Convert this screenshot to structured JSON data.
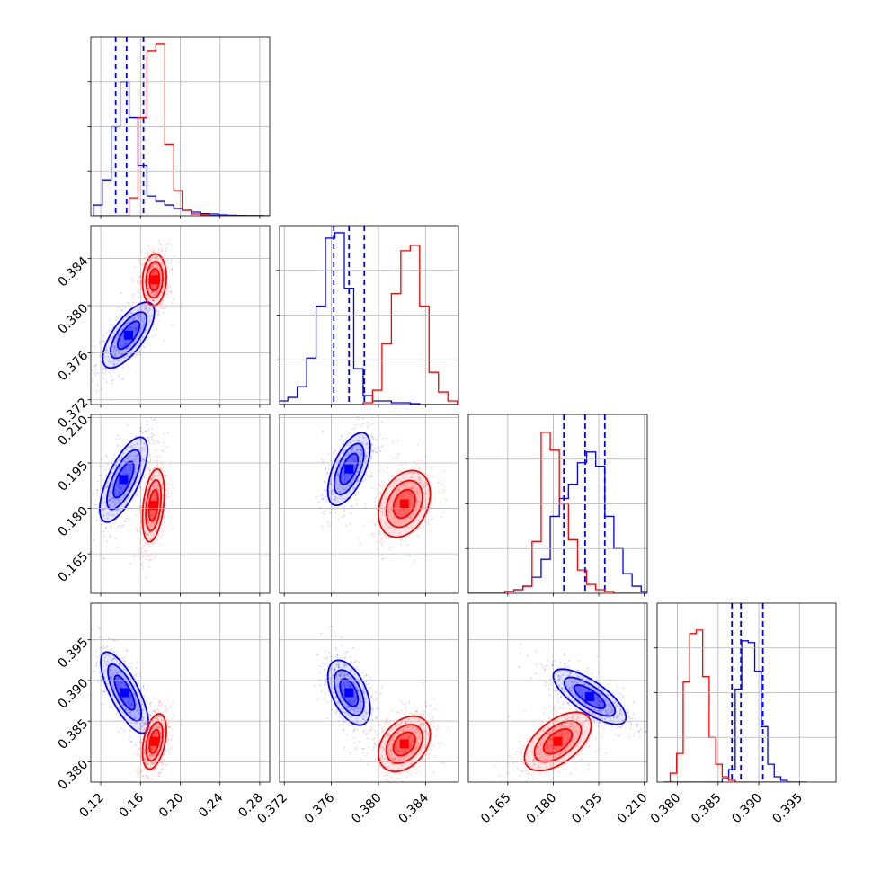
{
  "colors": {
    "series_a": "#0000ff",
    "series_b": "#ff0000",
    "grid": "#b0b0b0",
    "frame": "#000000"
  },
  "chart_data": {
    "type": "corner",
    "grid": true,
    "parameters": [
      {
        "range": [
          0.11,
          0.29
        ],
        "ticks": [
          0.12,
          0.16,
          0.2,
          0.24,
          0.28
        ],
        "tick_labels": [
          "0.12",
          "0.16",
          "0.20",
          "0.24",
          "0.28"
        ]
      },
      {
        "range": [
          0.3716,
          0.3868
        ],
        "ticks": [
          0.372,
          0.376,
          0.38,
          0.384
        ],
        "tick_labels": [
          "0.372",
          "0.376",
          "0.380",
          "0.384"
        ]
      },
      {
        "range": [
          0.152,
          0.211
        ],
        "ticks": [
          0.165,
          0.18,
          0.195,
          0.21
        ],
        "tick_labels": [
          "0.165",
          "0.180",
          "0.195",
          "0.210"
        ]
      },
      {
        "range": [
          0.3775,
          0.3995
        ],
        "ticks": [
          0.38,
          0.385,
          0.39,
          0.395
        ],
        "tick_labels": [
          "0.380",
          "0.385",
          "0.390",
          "0.395"
        ]
      }
    ],
    "series": [
      {
        "color": "#0000ff",
        "quantiles_drawn": true,
        "histograms": [
          {
            "x": [
              0.117,
              0.126,
              0.135,
              0.144,
              0.153,
              0.162,
              0.171,
              0.18,
              0.189,
              0.198,
              0.207,
              0.216,
              0.225,
              0.234,
              0.243,
              0.252,
              0.261,
              0.27,
              0.279,
              0.288
            ],
            "y": [
              0.06,
              0.2,
              0.5,
              0.75,
              0.55,
              0.28,
              0.11,
              0.08,
              0.06,
              0.04,
              0.03,
              0.02,
              0.012,
              0.01,
              0.005,
              0.003,
              0.002,
              0.001,
              0.001,
              0.0
            ],
            "quantiles": [
              0.135,
              0.146,
              0.163
            ]
          },
          {
            "x": [
              0.3719,
              0.3727,
              0.3735,
              0.3743,
              0.3751,
              0.3759,
              0.3767,
              0.3775,
              0.3783,
              0.3791,
              0.3799,
              0.3807,
              0.3815,
              0.3823,
              0.3831,
              0.3839,
              0.3847,
              0.3855,
              0.3863
            ],
            "y": [
              0.02,
              0.04,
              0.1,
              0.26,
              0.55,
              0.93,
              0.96,
              0.65,
              0.2,
              0.05,
              0.02,
              0.02,
              0.01,
              0.01,
              0.005,
              0.0,
              0.0,
              0.0,
              0.0
            ],
            "quantiles": [
              0.3762,
              0.3775,
              0.3788
            ]
          },
          {
            "x": [
              0.1535,
              0.1565,
              0.1595,
              0.1625,
              0.1655,
              0.1685,
              0.1715,
              0.1745,
              0.1775,
              0.1805,
              0.1835,
              0.1865,
              0.1895,
              0.1925,
              0.1955,
              0.1985,
              0.2015,
              0.2045,
              0.2075,
              0.2105
            ],
            "y": [
              0.0,
              0.0,
              0.0,
              0.0,
              0.01,
              0.02,
              0.04,
              0.09,
              0.19,
              0.43,
              0.53,
              0.61,
              0.73,
              0.79,
              0.71,
              0.43,
              0.25,
              0.11,
              0.04,
              0.01
            ],
            "quantiles": [
              0.1835,
              0.1905,
              0.197
            ]
          },
          {
            "x": [
              0.3787,
              0.3795,
              0.3803,
              0.3811,
              0.3819,
              0.3827,
              0.3835,
              0.3843,
              0.3851,
              0.3859,
              0.3867,
              0.3875,
              0.3883,
              0.3891,
              0.3899,
              0.3907,
              0.3915,
              0.3923,
              0.3931,
              0.3939,
              0.3947,
              0.3955
            ],
            "y": [
              0.0,
              0.0,
              0.0,
              0.0,
              0.0,
              0.0,
              0.0,
              0.0,
              0.0,
              0.02,
              0.07,
              0.52,
              0.79,
              0.78,
              0.62,
              0.31,
              0.1,
              0.03,
              0.01,
              0.0,
              0.0,
              0.0
            ],
            "quantiles": [
              0.3867,
              0.3878,
              0.3905
            ]
          }
        ],
        "pairs": [
          {
            "x_param": 0,
            "y_param": 1,
            "mean": [
              0.148,
              0.3775
            ],
            "sd": [
              0.013,
              0.0014
            ],
            "corr": 0.7
          },
          {
            "x_param": 0,
            "y_param": 2,
            "mean": [
              0.143,
              0.1895
            ],
            "sd": [
              0.012,
              0.007
            ],
            "corr": 0.7
          },
          {
            "x_param": 1,
            "y_param": 2,
            "mean": [
              0.3775,
              0.193
            ],
            "sd": [
              0.0009,
              0.006
            ],
            "corr": 0.6
          },
          {
            "x_param": 0,
            "y_param": 3,
            "mean": [
              0.144,
              0.3885
            ],
            "sd": [
              0.012,
              0.0025
            ],
            "corr": -0.75
          },
          {
            "x_param": 1,
            "y_param": 3,
            "mean": [
              0.3775,
              0.3885
            ],
            "sd": [
              0.0009,
              0.002
            ],
            "corr": -0.5
          },
          {
            "x_param": 2,
            "y_param": 3,
            "mean": [
              0.192,
              0.388
            ],
            "sd": [
              0.006,
              0.0017
            ],
            "corr": -0.75
          }
        ]
      },
      {
        "color": "#ff0000",
        "quantiles_drawn": false,
        "histograms": [
          {
            "x": [
              0.117,
              0.126,
              0.135,
              0.144,
              0.153,
              0.162,
              0.171,
              0.18,
              0.189,
              0.198,
              0.207,
              0.216,
              0.225,
              0.234,
              0.243,
              0.252,
              0.261,
              0.27,
              0.279,
              0.288
            ],
            "y": [
              0.0,
              0.0,
              0.0,
              0.0,
              0.1,
              0.55,
              0.92,
              0.96,
              0.4,
              0.14,
              0.03,
              0.01,
              0.005,
              0.002,
              0.001,
              0.0,
              0.0,
              0.0,
              0.0,
              0.0
            ]
          },
          {
            "x": [
              0.3719,
              0.3727,
              0.3735,
              0.3743,
              0.3751,
              0.3759,
              0.3767,
              0.3775,
              0.3783,
              0.3791,
              0.3799,
              0.3807,
              0.3815,
              0.3823,
              0.3831,
              0.3839,
              0.3847,
              0.3855,
              0.3863
            ],
            "y": [
              0.0,
              0.0,
              0.0,
              0.0,
              0.0,
              0.0,
              0.0,
              0.0,
              0.0,
              0.01,
              0.08,
              0.34,
              0.62,
              0.86,
              0.89,
              0.55,
              0.18,
              0.07,
              0.02
            ]
          },
          {
            "x": [
              0.1535,
              0.1565,
              0.1595,
              0.1625,
              0.1655,
              0.1685,
              0.1715,
              0.1745,
              0.1775,
              0.1805,
              0.1835,
              0.1865,
              0.1895,
              0.1925,
              0.1955,
              0.1985,
              0.2015,
              0.2045,
              0.2075,
              0.2105
            ],
            "y": [
              0.0,
              0.0,
              0.0,
              0.0,
              0.01,
              0.02,
              0.04,
              0.29,
              0.9,
              0.8,
              0.5,
              0.3,
              0.13,
              0.05,
              0.02,
              0.01,
              0.0,
              0.0,
              0.0,
              0.0
            ]
          },
          {
            "x": [
              0.3787,
              0.3795,
              0.3803,
              0.3811,
              0.3819,
              0.3827,
              0.3835,
              0.3843,
              0.3851,
              0.3859,
              0.3867,
              0.3875,
              0.3883,
              0.3891,
              0.3899,
              0.3907,
              0.3915,
              0.3923,
              0.3931,
              0.3939,
              0.3947,
              0.3955
            ],
            "y": [
              0.0,
              0.05,
              0.16,
              0.56,
              0.83,
              0.85,
              0.59,
              0.25,
              0.1,
              0.03,
              0.01,
              0.0,
              0.0,
              0.0,
              0.0,
              0.0,
              0.0,
              0.0,
              0.0,
              0.0,
              0.0,
              0.0
            ]
          }
        ],
        "pairs": [
          {
            "x_param": 0,
            "y_param": 1,
            "mean": [
              0.174,
              0.3822
            ],
            "sd": [
              0.006,
              0.0011
            ],
            "corr": 0.1
          },
          {
            "x_param": 0,
            "y_param": 2,
            "mean": [
              0.173,
              0.181
            ],
            "sd": [
              0.0055,
              0.006
            ],
            "corr": 0.35
          },
          {
            "x_param": 1,
            "y_param": 2,
            "mean": [
              0.3822,
              0.1815
            ],
            "sd": [
              0.0011,
              0.0055
            ],
            "corr": 0.3
          },
          {
            "x_param": 0,
            "y_param": 3,
            "mean": [
              0.174,
              0.3825
            ],
            "sd": [
              0.006,
              0.0017
            ],
            "corr": 0.4
          },
          {
            "x_param": 1,
            "y_param": 3,
            "mean": [
              0.3822,
              0.3822
            ],
            "sd": [
              0.0011,
              0.0017
            ],
            "corr": 0.35
          },
          {
            "x_param": 2,
            "y_param": 3,
            "mean": [
              0.1815,
              0.3825
            ],
            "sd": [
              0.0055,
              0.0018
            ],
            "corr": 0.55
          }
        ]
      }
    ]
  }
}
